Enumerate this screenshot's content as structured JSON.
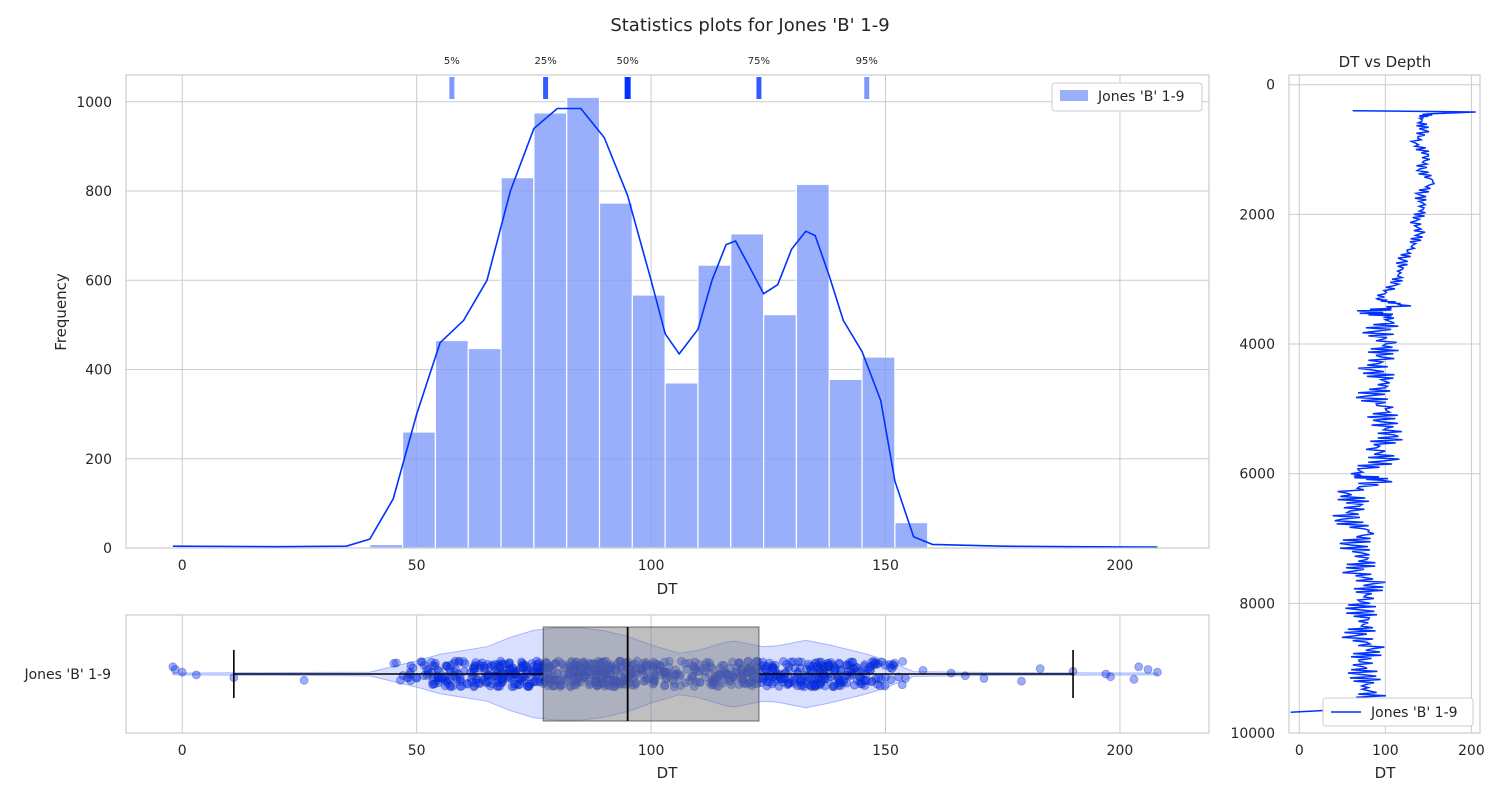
{
  "figure": {
    "title": "Statistics plots for Jones 'B' 1-9",
    "accent_color": "#0032ff",
    "hist_color": "#7f9bfb",
    "box_color": "#808080"
  },
  "chart_data": [
    {
      "type": "bar",
      "panel": "histogram",
      "xlabel": "DT",
      "ylabel": "Frequency",
      "xlim": [
        -12,
        219
      ],
      "ylim": [
        0,
        1060
      ],
      "xticks": [
        0,
        50,
        100,
        150,
        200
      ],
      "yticks": [
        0,
        200,
        400,
        600,
        800,
        1000
      ],
      "bin_width": 7,
      "bins": [
        {
          "x0": 40,
          "count": 8
        },
        {
          "x0": 47,
          "count": 260
        },
        {
          "x0": 54,
          "count": 465
        },
        {
          "x0": 61,
          "count": 447
        },
        {
          "x0": 68,
          "count": 830
        },
        {
          "x0": 75,
          "count": 975
        },
        {
          "x0": 82,
          "count": 1010
        },
        {
          "x0": 89,
          "count": 773
        },
        {
          "x0": 96,
          "count": 567
        },
        {
          "x0": 103,
          "count": 370
        },
        {
          "x0": 110,
          "count": 634
        },
        {
          "x0": 117,
          "count": 704
        },
        {
          "x0": 124,
          "count": 523
        },
        {
          "x0": 131,
          "count": 815
        },
        {
          "x0": 138,
          "count": 378
        },
        {
          "x0": 145,
          "count": 428
        },
        {
          "x0": 152,
          "count": 57
        }
      ],
      "kde": [
        [
          -2,
          4
        ],
        [
          20,
          3
        ],
        [
          35,
          4
        ],
        [
          40,
          20
        ],
        [
          45,
          110
        ],
        [
          50,
          300
        ],
        [
          55,
          460
        ],
        [
          60,
          510
        ],
        [
          65,
          600
        ],
        [
          70,
          800
        ],
        [
          75,
          940
        ],
        [
          80,
          985
        ],
        [
          85,
          985
        ],
        [
          90,
          920
        ],
        [
          95,
          790
        ],
        [
          100,
          600
        ],
        [
          103,
          480
        ],
        [
          106,
          435
        ],
        [
          110,
          490
        ],
        [
          113,
          600
        ],
        [
          116,
          680
        ],
        [
          118,
          688
        ],
        [
          121,
          630
        ],
        [
          124,
          570
        ],
        [
          127,
          590
        ],
        [
          130,
          670
        ],
        [
          133,
          710
        ],
        [
          135,
          700
        ],
        [
          138,
          610
        ],
        [
          141,
          510
        ],
        [
          145,
          440
        ],
        [
          149,
          330
        ],
        [
          152,
          150
        ],
        [
          156,
          25
        ],
        [
          160,
          8
        ],
        [
          175,
          4
        ],
        [
          190,
          3
        ],
        [
          208,
          2
        ]
      ],
      "percentiles": [
        {
          "label": "5%",
          "value": 57.5,
          "alpha": 0.5
        },
        {
          "label": "25%",
          "value": 77.5,
          "alpha": 0.8
        },
        {
          "label": "50%",
          "value": 95,
          "alpha": 1.0
        },
        {
          "label": "75%",
          "value": 123,
          "alpha": 0.8
        },
        {
          "label": "95%",
          "value": 146,
          "alpha": 0.5
        }
      ],
      "legend": {
        "label": "Jones 'B' 1-9",
        "placement": "top-right"
      }
    },
    {
      "type": "box",
      "panel": "boxplot",
      "category": "Jones 'B' 1-9",
      "xlabel": "DT",
      "xlim": [
        -12,
        219
      ],
      "xticks": [
        0,
        50,
        100,
        150,
        200
      ],
      "box": {
        "q1": 77,
        "median": 95,
        "q3": 123,
        "whisker_low": 11,
        "whisker_high": 190
      },
      "violin": [
        [
          -2,
          0.02
        ],
        [
          40,
          0.04
        ],
        [
          45,
          0.16
        ],
        [
          50,
          0.28
        ],
        [
          55,
          0.42
        ],
        [
          60,
          0.5
        ],
        [
          65,
          0.58
        ],
        [
          70,
          0.78
        ],
        [
          75,
          0.93
        ],
        [
          80,
          0.98
        ],
        [
          85,
          0.98
        ],
        [
          90,
          0.92
        ],
        [
          95,
          0.8
        ],
        [
          100,
          0.62
        ],
        [
          106,
          0.44
        ],
        [
          110,
          0.5
        ],
        [
          116,
          0.68
        ],
        [
          118,
          0.7
        ],
        [
          124,
          0.58
        ],
        [
          127,
          0.6
        ],
        [
          133,
          0.72
        ],
        [
          138,
          0.62
        ],
        [
          145,
          0.45
        ],
        [
          150,
          0.3
        ],
        [
          156,
          0.05
        ],
        [
          175,
          0.03
        ],
        [
          208,
          0.02
        ]
      ],
      "outliers": [
        -2,
        -1.5,
        0,
        3,
        11,
        26,
        151,
        158,
        164,
        167,
        171,
        179,
        183,
        190,
        197,
        198,
        203,
        204,
        206,
        208
      ]
    },
    {
      "type": "line",
      "panel": "log",
      "title": "DT vs Depth",
      "xlabel": "DT",
      "xlim": [
        -12,
        210
      ],
      "ylim": [
        10000,
        -150
      ],
      "xticks": [
        0,
        100,
        200
      ],
      "yticks": [
        0,
        2000,
        4000,
        6000,
        8000,
        10000
      ],
      "series": [
        {
          "name": "Jones 'B' 1-9",
          "depth": [
            400,
            420,
            450,
            520,
            700,
            900,
            1100,
            1300,
            1500,
            1700,
            1900,
            2100,
            2300,
            2500,
            2700,
            2900,
            3100,
            3300,
            3400,
            3500,
            3600,
            3800,
            4000,
            4200,
            4400,
            4600,
            4800,
            5000,
            5200,
            5400,
            5600,
            5800,
            6000,
            6100,
            6300,
            6500,
            6700,
            6900,
            7100,
            7300,
            7500,
            7700,
            7900,
            8100,
            8300,
            8500,
            8700,
            8900,
            9100,
            9300,
            9500,
            9620,
            9680
          ],
          "dt": [
            62,
            205,
            150,
            140,
            145,
            135,
            150,
            140,
            155,
            140,
            145,
            135,
            140,
            130,
            120,
            118,
            110,
            90,
            120,
            80,
            110,
            90,
            100,
            95,
            85,
            105,
            80,
            100,
            95,
            110,
            90,
            100,
            60,
            95,
            55,
            70,
            50,
            80,
            60,
            80,
            65,
            85,
            75,
            70,
            80,
            65,
            85,
            70,
            75,
            80,
            85,
            75,
            -10
          ]
        }
      ],
      "legend": {
        "label": "Jones 'B' 1-9",
        "placement": "lower-right"
      }
    }
  ]
}
